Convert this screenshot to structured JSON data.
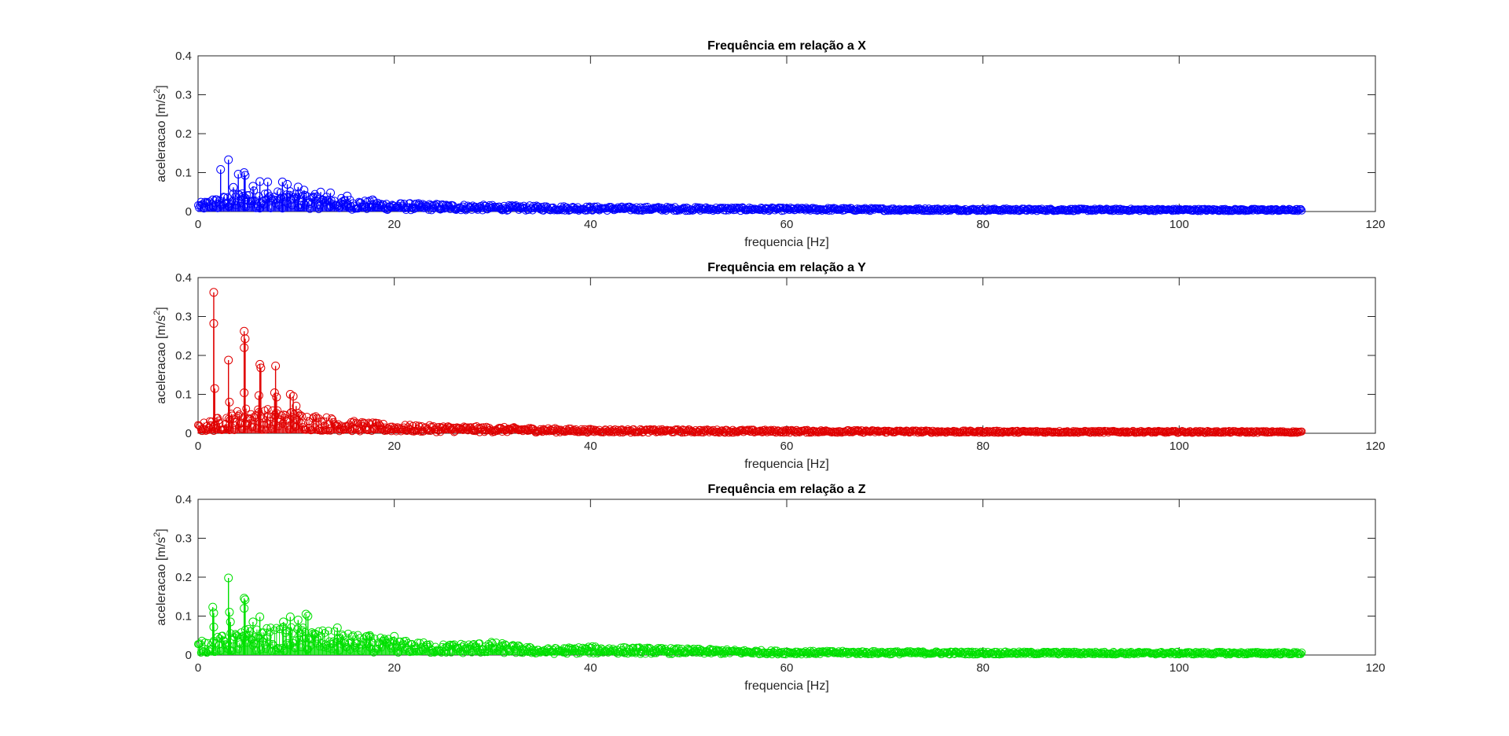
{
  "figure": {
    "background": "#ffffff",
    "axis_color": "#262626"
  },
  "chart_data": [
    {
      "type": "scatter",
      "subtype": "stem",
      "title": "Frequência em relação a X",
      "xlabel": "frequencia [Hz]",
      "ylabel_base": "aceleracao [m/s",
      "ylabel_sup": "2",
      "ylabel_end": "]",
      "xlim": [
        0,
        120
      ],
      "ylim": [
        0,
        0.4
      ],
      "xticks": [
        "0",
        "20",
        "40",
        "60",
        "80",
        "100",
        "120"
      ],
      "yticks": [
        "0",
        "0.1",
        "0.2",
        "0.3",
        "0.4"
      ],
      "x_range_data": [
        0,
        112.5
      ],
      "marker": "circle",
      "color": "#0000ff",
      "series": [
        {
          "peaks": [
            {
              "x": 1.5,
              "y": 0.03
            },
            {
              "x": 2.3,
              "y": 0.108
            },
            {
              "x": 3.1,
              "y": 0.133
            },
            {
              "x": 3.6,
              "y": 0.062
            },
            {
              "x": 4.1,
              "y": 0.096
            },
            {
              "x": 4.7,
              "y": 0.1
            },
            {
              "x": 4.8,
              "y": 0.093
            },
            {
              "x": 5.6,
              "y": 0.065
            },
            {
              "x": 6.3,
              "y": 0.077
            },
            {
              "x": 7.1,
              "y": 0.076
            },
            {
              "x": 8.6,
              "y": 0.076
            },
            {
              "x": 9.1,
              "y": 0.07
            },
            {
              "x": 10.2,
              "y": 0.063
            },
            {
              "x": 10.8,
              "y": 0.055
            },
            {
              "x": 12.5,
              "y": 0.05
            },
            {
              "x": 13.5,
              "y": 0.048
            },
            {
              "x": 15.2,
              "y": 0.04
            },
            {
              "x": 17.8,
              "y": 0.03
            }
          ],
          "envelope": [
            {
              "x": 0,
              "y": 0.02
            },
            {
              "x": 5,
              "y": 0.05
            },
            {
              "x": 10,
              "y": 0.045
            },
            {
              "x": 15,
              "y": 0.03
            },
            {
              "x": 20,
              "y": 0.02
            },
            {
              "x": 30,
              "y": 0.015
            },
            {
              "x": 40,
              "y": 0.012
            },
            {
              "x": 60,
              "y": 0.009
            },
            {
              "x": 80,
              "y": 0.007
            },
            {
              "x": 112.5,
              "y": 0.006
            }
          ]
        }
      ]
    },
    {
      "type": "scatter",
      "subtype": "stem",
      "title": "Frequência em relação a Y",
      "xlabel": "frequencia [Hz]",
      "ylabel_base": "aceleracao [m/s",
      "ylabel_sup": "2",
      "ylabel_end": "]",
      "xlim": [
        0,
        120
      ],
      "ylim": [
        0,
        0.4
      ],
      "xticks": [
        "0",
        "20",
        "40",
        "60",
        "80",
        "100",
        "120"
      ],
      "yticks": [
        "0",
        "0.1",
        "0.2",
        "0.3",
        "0.4"
      ],
      "x_range_data": [
        0,
        112.5
      ],
      "marker": "circle",
      "color": "#e00000",
      "series": [
        {
          "peaks": [
            {
              "x": 1.6,
              "y": 0.362
            },
            {
              "x": 1.6,
              "y": 0.282
            },
            {
              "x": 1.7,
              "y": 0.115
            },
            {
              "x": 3.1,
              "y": 0.188
            },
            {
              "x": 3.2,
              "y": 0.08
            },
            {
              "x": 4.7,
              "y": 0.262
            },
            {
              "x": 4.8,
              "y": 0.243
            },
            {
              "x": 4.7,
              "y": 0.22
            },
            {
              "x": 4.7,
              "y": 0.104
            },
            {
              "x": 6.3,
              "y": 0.177
            },
            {
              "x": 6.4,
              "y": 0.168
            },
            {
              "x": 6.2,
              "y": 0.097
            },
            {
              "x": 7.9,
              "y": 0.173
            },
            {
              "x": 7.8,
              "y": 0.104
            },
            {
              "x": 8.0,
              "y": 0.093
            },
            {
              "x": 9.4,
              "y": 0.1
            },
            {
              "x": 9.7,
              "y": 0.095
            },
            {
              "x": 10.0,
              "y": 0.07
            }
          ],
          "envelope": [
            {
              "x": 0,
              "y": 0.02
            },
            {
              "x": 5,
              "y": 0.06
            },
            {
              "x": 10,
              "y": 0.05
            },
            {
              "x": 15,
              "y": 0.03
            },
            {
              "x": 20,
              "y": 0.02
            },
            {
              "x": 30,
              "y": 0.015
            },
            {
              "x": 40,
              "y": 0.01
            },
            {
              "x": 60,
              "y": 0.008
            },
            {
              "x": 80,
              "y": 0.006
            },
            {
              "x": 112.5,
              "y": 0.005
            }
          ]
        }
      ]
    },
    {
      "type": "scatter",
      "subtype": "stem",
      "title": "Frequência em relação a Z",
      "xlabel": "frequencia [Hz]",
      "ylabel_base": "aceleracao [m/s",
      "ylabel_sup": "2",
      "ylabel_end": "]",
      "xlim": [
        0,
        120
      ],
      "ylim": [
        0,
        0.4
      ],
      "xticks": [
        "0",
        "20",
        "40",
        "60",
        "80",
        "100",
        "120"
      ],
      "yticks": [
        "0",
        "0.1",
        "0.2",
        "0.3",
        "0.4"
      ],
      "x_range_data": [
        0,
        112.5
      ],
      "marker": "circle",
      "color": "#00e000",
      "series": [
        {
          "peaks": [
            {
              "x": 1.5,
              "y": 0.123
            },
            {
              "x": 1.6,
              "y": 0.108
            },
            {
              "x": 1.6,
              "y": 0.072
            },
            {
              "x": 3.1,
              "y": 0.198
            },
            {
              "x": 3.2,
              "y": 0.11
            },
            {
              "x": 3.3,
              "y": 0.085
            },
            {
              "x": 4.7,
              "y": 0.146
            },
            {
              "x": 4.8,
              "y": 0.142
            },
            {
              "x": 4.7,
              "y": 0.12
            },
            {
              "x": 5.6,
              "y": 0.085
            },
            {
              "x": 6.3,
              "y": 0.098
            },
            {
              "x": 8.7,
              "y": 0.085
            },
            {
              "x": 9.4,
              "y": 0.098
            },
            {
              "x": 10.2,
              "y": 0.09
            },
            {
              "x": 11.0,
              "y": 0.105
            },
            {
              "x": 11.2,
              "y": 0.1
            },
            {
              "x": 14.2,
              "y": 0.07
            },
            {
              "x": 17.5,
              "y": 0.05
            },
            {
              "x": 20.0,
              "y": 0.048
            }
          ],
          "envelope": [
            {
              "x": 0,
              "y": 0.03
            },
            {
              "x": 5,
              "y": 0.06
            },
            {
              "x": 10,
              "y": 0.065
            },
            {
              "x": 15,
              "y": 0.05
            },
            {
              "x": 20,
              "y": 0.035
            },
            {
              "x": 25,
              "y": 0.025
            },
            {
              "x": 30,
              "y": 0.03
            },
            {
              "x": 35,
              "y": 0.015
            },
            {
              "x": 40,
              "y": 0.02
            },
            {
              "x": 60,
              "y": 0.01
            },
            {
              "x": 80,
              "y": 0.008
            },
            {
              "x": 112.5,
              "y": 0.007
            }
          ]
        }
      ]
    }
  ]
}
